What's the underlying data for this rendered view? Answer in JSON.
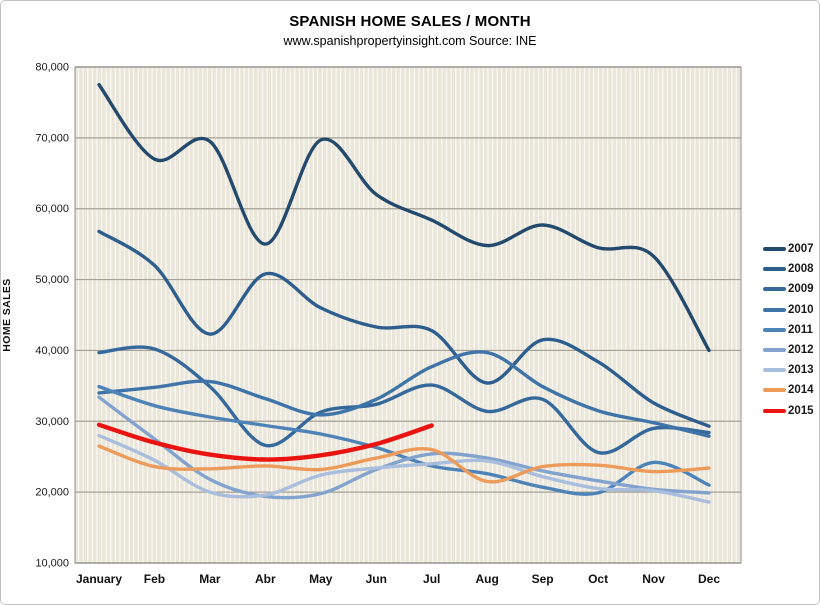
{
  "page": {
    "title": "SPANISH HOME SALES / MONTH",
    "subtitle": "www.spanishpropertyinsight.com Source: INE"
  },
  "chart_data": {
    "type": "line",
    "title": "SPANISH HOME SALES / MONTH",
    "subtitle": "www.spanishpropertyinsight.com Source: INE",
    "xlabel": "",
    "ylabel": "HOME SALES",
    "ylim": [
      10000,
      80000
    ],
    "ytick_step": 10000,
    "yticks": [
      10000,
      20000,
      30000,
      40000,
      50000,
      60000,
      70000,
      80000
    ],
    "grid": "horizontal",
    "legend_position": "right",
    "line_style": "smooth",
    "categories": [
      "January",
      "Feb",
      "Mar",
      "Abr",
      "May",
      "Jun",
      "Jul",
      "Aug",
      "Sep",
      "Oct",
      "Nov",
      "Dec"
    ],
    "series": [
      {
        "name": "2007",
        "color": "#234A6D",
        "line_width": 3.4,
        "values": [
          77500,
          67000,
          69500,
          55000,
          69700,
          62000,
          58400,
          54800,
          57700,
          54500,
          53300,
          40000
        ]
      },
      {
        "name": "2008",
        "color": "#2E5E8E",
        "line_width": 3.4,
        "values": [
          56800,
          52000,
          42300,
          50800,
          46000,
          43300,
          42800,
          35400,
          41500,
          38400,
          32600,
          29300
        ]
      },
      {
        "name": "2009",
        "color": "#35689B",
        "line_width": 3.4,
        "values": [
          39700,
          40200,
          34900,
          26600,
          31300,
          32400,
          35100,
          31400,
          33100,
          25600,
          29000,
          28400
        ]
      },
      {
        "name": "2010",
        "color": "#3E74A8",
        "line_width": 3.4,
        "values": [
          34000,
          34800,
          35600,
          33200,
          30900,
          33100,
          37700,
          39700,
          34900,
          31500,
          29800,
          27900
        ]
      },
      {
        "name": "2011",
        "color": "#4E83B8",
        "line_width": 3.4,
        "values": [
          34900,
          32200,
          30600,
          29400,
          28200,
          26300,
          23700,
          22600,
          20700,
          19900,
          24200,
          21000
        ]
      },
      {
        "name": "2012",
        "color": "#82A3CE",
        "line_width": 3.4,
        "values": [
          33400,
          27500,
          21800,
          19400,
          19800,
          23200,
          25400,
          24800,
          23000,
          21600,
          20400,
          19900
        ]
      },
      {
        "name": "2013",
        "color": "#A9BEDC",
        "line_width": 3.4,
        "values": [
          28000,
          24500,
          20000,
          19600,
          22400,
          23400,
          24000,
          24400,
          22200,
          20500,
          20200,
          18600
        ]
      },
      {
        "name": "2014",
        "color": "#EC9B5B",
        "line_width": 3.4,
        "values": [
          26500,
          23600,
          23300,
          23700,
          23200,
          24800,
          26000,
          21500,
          23600,
          23800,
          22900,
          23400
        ]
      },
      {
        "name": "2015",
        "color": "#EA1310",
        "line_width": 4.4,
        "values": [
          29500,
          27000,
          25300,
          24600,
          25200,
          26800,
          29400,
          null,
          null,
          null,
          null,
          null
        ]
      }
    ]
  },
  "style": {
    "plot_bg": "#EAE6DA",
    "pinstripe": "#F9F7F1",
    "gridline": "#A5A195",
    "plot_border": "#8F8F8F",
    "tick_label_color": "#1a1a1a",
    "month_label_color": "#111111"
  }
}
